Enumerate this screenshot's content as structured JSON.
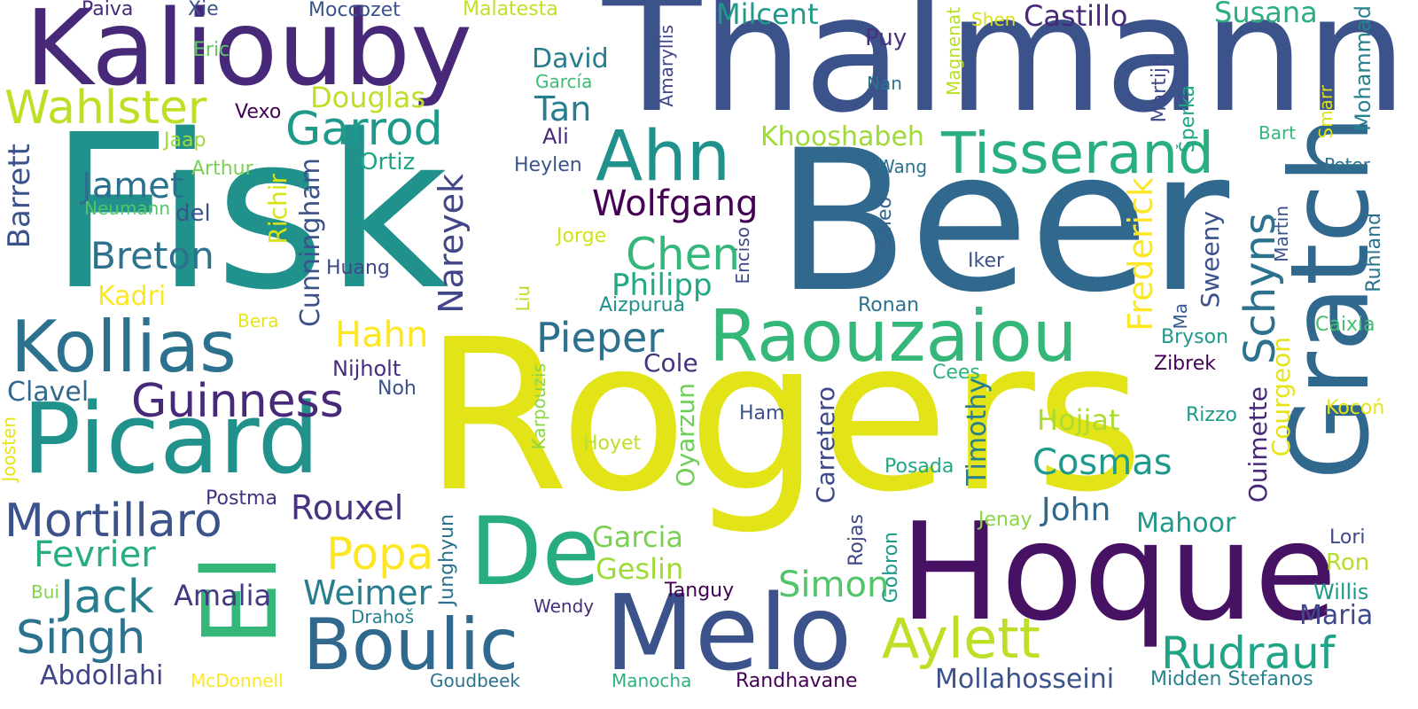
{
  "words": [
    {
      "text": "Rogers",
      "color": "#e2e418"
    },
    {
      "text": "Fisk",
      "color": "#21918c"
    },
    {
      "text": "Beer",
      "color": "#31688e"
    },
    {
      "text": "Thalmann",
      "color": "#3b528b"
    },
    {
      "text": "Hoque",
      "color": "#471164"
    },
    {
      "text": "Kaliouby",
      "color": "#482878"
    },
    {
      "text": "Gratch",
      "color": "#31688e"
    },
    {
      "text": "Picard",
      "color": "#21918c"
    },
    {
      "text": "Melo",
      "color": "#3b528b"
    },
    {
      "text": "De",
      "color": "#27ad81"
    },
    {
      "text": "El",
      "color": "#35b779"
    },
    {
      "text": "Raouzaiou",
      "color": "#35b779"
    },
    {
      "text": "Kollias",
      "color": "#2c728e"
    },
    {
      "text": "Boulic",
      "color": "#31688e"
    },
    {
      "text": "Ahn",
      "color": "#21918c"
    },
    {
      "text": "Tisserand",
      "color": "#29af7f"
    },
    {
      "text": "Aylett",
      "color": "#bddf26"
    },
    {
      "text": "Garrod",
      "color": "#1f9a8a"
    },
    {
      "text": "Wahlster",
      "color": "#bddf26"
    },
    {
      "text": "Guinness",
      "color": "#482878"
    },
    {
      "text": "Mortillaro",
      "color": "#3b528b"
    },
    {
      "text": "Singh",
      "color": "#2c728e"
    },
    {
      "text": "Jack",
      "color": "#287d8e"
    },
    {
      "text": "Rudrauf",
      "color": "#20a386"
    },
    {
      "text": "Chen",
      "color": "#35b779"
    },
    {
      "text": "Pieper",
      "color": "#2c728e"
    },
    {
      "text": "Schyns",
      "color": "#2c728e"
    },
    {
      "text": "Popa",
      "color": "#fde725"
    },
    {
      "text": "Breton",
      "color": "#2c728e"
    },
    {
      "text": "Jamet",
      "color": "#2c728e"
    },
    {
      "text": "Wolfgang",
      "color": "#440154"
    },
    {
      "text": "Fevrier",
      "color": "#27ad81"
    },
    {
      "text": "Rouxel",
      "color": "#46327e"
    },
    {
      "text": "Weimer",
      "color": "#287d8e"
    },
    {
      "text": "Simon",
      "color": "#52c569"
    },
    {
      "text": "Cosmas",
      "color": "#1f9a8a"
    },
    {
      "text": "Hahn",
      "color": "#fde725"
    },
    {
      "text": "Philipp",
      "color": "#22a884"
    },
    {
      "text": "Castillo",
      "color": "#482878"
    },
    {
      "text": "Milcent",
      "color": "#1f9a8a"
    },
    {
      "text": "Susana",
      "color": "#2ab07f"
    },
    {
      "text": "Douglas",
      "color": "#bddf26"
    },
    {
      "text": "Tan",
      "color": "#287d8e"
    },
    {
      "text": "David",
      "color": "#287d8e"
    },
    {
      "text": "Khooshabeh",
      "color": "#a0da39"
    },
    {
      "text": "Abdollahi",
      "color": "#414487"
    },
    {
      "text": "Garcia",
      "color": "#7ad151"
    },
    {
      "text": "Geslin",
      "color": "#a0da39"
    },
    {
      "text": "Mahoor",
      "color": "#1f9a8a"
    },
    {
      "text": "Hojjat",
      "color": "#addc30"
    },
    {
      "text": "John",
      "color": "#31688e"
    },
    {
      "text": "Maria",
      "color": "#3e4989"
    },
    {
      "text": "Cole",
      "color": "#46327e"
    },
    {
      "text": "Amalia",
      "color": "#453781"
    },
    {
      "text": "Kadri",
      "color": "#fde725"
    },
    {
      "text": "Clavel",
      "color": "#31688e"
    },
    {
      "text": "Mollahosseini",
      "color": "#3b528b"
    },
    {
      "text": "Goudbeek",
      "color": "#2c728e"
    },
    {
      "text": "Manocha",
      "color": "#2db27d"
    },
    {
      "text": "Randhavane",
      "color": "#440154"
    },
    {
      "text": "Midden Stefanos",
      "color": "#26828e"
    },
    {
      "text": "McDonnell",
      "color": "#fde725"
    },
    {
      "text": "Nijholt",
      "color": "#472d7b"
    },
    {
      "text": "Noh",
      "color": "#3b528b"
    },
    {
      "text": "Postma",
      "color": "#46327e"
    },
    {
      "text": "Bui",
      "color": "#86d549"
    },
    {
      "text": "Drahoš",
      "color": "#26828e"
    },
    {
      "text": "Wendy",
      "color": "#472d7b"
    },
    {
      "text": "Tanguy",
      "color": "#440154"
    },
    {
      "text": "Willis",
      "color": "#1f9a8a"
    },
    {
      "text": "Ron",
      "color": "#b5de2b"
    },
    {
      "text": "Lori",
      "color": "#3e4989"
    },
    {
      "text": "Ham",
      "color": "#3b528b"
    },
    {
      "text": "Hoyet",
      "color": "#bddf26"
    },
    {
      "text": "Posada",
      "color": "#22a884"
    },
    {
      "text": "Jenay",
      "color": "#8bd646"
    },
    {
      "text": "Rizzo",
      "color": "#1f9a8a"
    },
    {
      "text": "Kocoń",
      "color": "#e5e419"
    },
    {
      "text": "Bryson",
      "color": "#1f9a8a"
    },
    {
      "text": "Zibrek",
      "color": "#440154"
    },
    {
      "text": "Cees",
      "color": "#2db27d"
    },
    {
      "text": "Caixia",
      "color": "#44bf70"
    },
    {
      "text": "Ronan",
      "color": "#2c728e"
    },
    {
      "text": "Iker",
      "color": "#3b528b"
    },
    {
      "text": "Aizpurua",
      "color": "#21918c"
    },
    {
      "text": "Huang",
      "color": "#3e4989"
    },
    {
      "text": "Bera",
      "color": "#e5e419"
    },
    {
      "text": "Jorge",
      "color": "#d2e21b"
    },
    {
      "text": "Heylen",
      "color": "#3b528b"
    },
    {
      "text": "Ali",
      "color": "#482878"
    },
    {
      "text": "Ortiz",
      "color": "#20a386"
    },
    {
      "text": "Arthur",
      "color": "#7ad151"
    },
    {
      "text": "Neumann",
      "color": "#52c569"
    },
    {
      "text": "del",
      "color": "#39568c"
    },
    {
      "text": "Jaap",
      "color": "#a0da39"
    },
    {
      "text": "Vexo",
      "color": "#440154"
    },
    {
      "text": "Eric",
      "color": "#5ec962"
    },
    {
      "text": "Paiva",
      "color": "#482878"
    },
    {
      "text": "Xie",
      "color": "#39568c"
    },
    {
      "text": "Moccozet",
      "color": "#3b528b"
    },
    {
      "text": "Malatesta",
      "color": "#c2df23"
    },
    {
      "text": "García",
      "color": "#3dbc74"
    },
    {
      "text": "Puy",
      "color": "#46327e"
    },
    {
      "text": "Nan",
      "color": "#2c728e"
    },
    {
      "text": "Shen",
      "color": "#d8e219"
    },
    {
      "text": "Wang",
      "color": "#2c728e"
    },
    {
      "text": "Peter",
      "color": "#2c728e"
    },
    {
      "text": "Bart",
      "color": "#35b779"
    },
    {
      "text": "Barrett",
      "color": "#3b528b"
    },
    {
      "text": "Cunningham",
      "color": "#3b528b"
    },
    {
      "text": "Richir",
      "color": "#d8e219"
    },
    {
      "text": "Nareyek",
      "color": "#404688"
    },
    {
      "text": "Liu",
      "color": "#b5de2b"
    },
    {
      "text": "Enciso",
      "color": "#3e4989"
    },
    {
      "text": "Amaryllis",
      "color": "#414487"
    },
    {
      "text": "Fidaleo",
      "color": "#33638d"
    },
    {
      "text": "Frederick",
      "color": "#fde725"
    },
    {
      "text": "Sweeny",
      "color": "#3b528b"
    },
    {
      "text": "Courgeon",
      "color": "#e5e419"
    },
    {
      "text": "Ouimette",
      "color": "#482878"
    },
    {
      "text": "Ma",
      "color": "#38598c"
    },
    {
      "text": "Martin",
      "color": "#3b528b"
    },
    {
      "text": "Ruhland",
      "color": "#2c728e"
    },
    {
      "text": "Mohammad",
      "color": "#26828e"
    },
    {
      "text": "Smarr",
      "color": "#d8e219"
    },
    {
      "text": "Šperka",
      "color": "#20a386"
    },
    {
      "text": "Martijn",
      "color": "#3e4989"
    },
    {
      "text": "Magnenat",
      "color": "#b5de2b"
    },
    {
      "text": "Oyarzun",
      "color": "#6ece58"
    },
    {
      "text": "Carretero",
      "color": "#3e4989"
    },
    {
      "text": "Rojas",
      "color": "#3e4989"
    },
    {
      "text": "Gobron",
      "color": "#1f9a8a"
    },
    {
      "text": "Timothy",
      "color": "#287d8e"
    },
    {
      "text": "Karpouzis",
      "color": "#8bd646"
    },
    {
      "text": "Joosten",
      "color": "#e5e419"
    },
    {
      "text": "Junghyun",
      "color": "#2c728e"
    }
  ]
}
